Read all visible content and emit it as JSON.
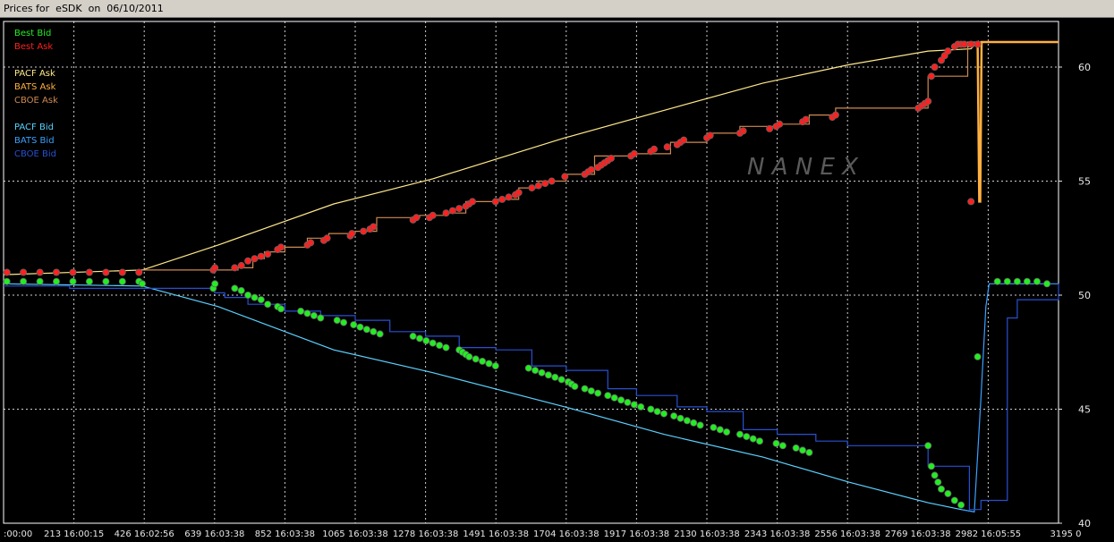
{
  "window": {
    "title": "Prices for  eSDK  on  06/10/2011"
  },
  "watermark": "N A N E X",
  "colors": {
    "background": "#000000",
    "plot_border": "#ffffff",
    "grid": "#cfcfcf",
    "axis_text": "#e6e6e6",
    "best_bid": "#22ee22",
    "best_ask": "#ff2020",
    "pacf_ask": "#ffe98a",
    "bats_ask": "#ffb040",
    "cboe_ask": "#d08a50",
    "pacf_bid": "#5ad2ff",
    "bats_bid": "#3aa0ff",
    "cboe_bid": "#2850d0"
  },
  "chart_data": {
    "type": "line",
    "title": "Prices for  eSDK  on  06/10/2011",
    "xlabel": "",
    "ylabel": "",
    "xlim": [
      0,
      3195
    ],
    "ylim": [
      40,
      62
    ],
    "grid": true,
    "legend_position": "top-left",
    "y_ticks": [
      40,
      45,
      50,
      55,
      60
    ],
    "x_tick_labels": [
      {
        "value": 0,
        "label": ":00:00"
      },
      {
        "value": 213,
        "label": "213 16:00:15"
      },
      {
        "value": 426,
        "label": "426 16:02:56"
      },
      {
        "value": 639,
        "label": "639 16:03:38"
      },
      {
        "value": 852,
        "label": "852 16:03:38"
      },
      {
        "value": 1065,
        "label": "1065 16:03:38"
      },
      {
        "value": 1278,
        "label": "1278 16:03:38"
      },
      {
        "value": 1491,
        "label": "1491 16:03:38"
      },
      {
        "value": 1704,
        "label": "1704 16:03:38"
      },
      {
        "value": 1917,
        "label": "1917 16:03:38"
      },
      {
        "value": 2130,
        "label": "2130 16:03:38"
      },
      {
        "value": 2343,
        "label": "2343 16:03:38"
      },
      {
        "value": 2556,
        "label": "2556 16:03:38"
      },
      {
        "value": 2769,
        "label": "2769 16:03:38"
      },
      {
        "value": 2982,
        "label": "2982 16:05:55"
      },
      {
        "value": 3195,
        "label": "3195 0"
      }
    ],
    "legend_groups": [
      [
        "Best Bid",
        "Best Ask"
      ],
      [
        "PACF Ask",
        "BATS Ask",
        "CBOE Ask"
      ],
      [
        "PACF Bid",
        "BATS Bid",
        "CBOE Bid"
      ]
    ],
    "series": [
      {
        "name": "PACF Ask",
        "kind": "line",
        "x": [
          0,
          420,
          650,
          1000,
          1300,
          1700,
          2000,
          2300,
          2560,
          2800,
          2930,
          2950,
          3195
        ],
        "y": [
          50.9,
          51.1,
          52.2,
          54.0,
          55.1,
          56.9,
          58.1,
          59.3,
          60.1,
          60.7,
          60.8,
          61.1,
          61.1
        ]
      },
      {
        "name": "BATS Ask",
        "kind": "line",
        "x": [
          2920,
          2950,
          2955,
          2958,
          2962,
          2975,
          3195
        ],
        "y": [
          60.9,
          61.1,
          54.1,
          54.1,
          61.1,
          61.1,
          61.1
        ]
      },
      {
        "name": "CBOE Ask",
        "kind": "step",
        "x": [
          420,
          639,
          710,
          755,
          790,
          852,
          920,
          985,
          1065,
          1130,
          1260,
          1340,
          1400,
          1491,
          1560,
          1620,
          1704,
          1790,
          1917,
          2020,
          2130,
          2230,
          2343,
          2440,
          2520,
          2760,
          2800,
          2920,
          2950
        ],
        "y": [
          51.1,
          51.1,
          51.2,
          51.6,
          51.9,
          52.1,
          52.5,
          52.7,
          52.8,
          53.4,
          53.5,
          53.6,
          54.1,
          54.2,
          54.7,
          55.0,
          55.3,
          56.1,
          56.2,
          56.7,
          57.1,
          57.4,
          57.5,
          57.9,
          58.2,
          58.2,
          59.6,
          61.1,
          61.1
        ]
      },
      {
        "name": "PACF Bid",
        "kind": "line",
        "x": [
          0,
          420,
          650,
          1000,
          1300,
          1700,
          2000,
          2300,
          2560,
          2800,
          2900,
          2940
        ],
        "y": [
          50.5,
          50.4,
          49.5,
          47.6,
          46.6,
          45.1,
          43.9,
          42.9,
          41.8,
          40.9,
          40.6,
          40.5
        ]
      },
      {
        "name": "BATS Bid",
        "kind": "line",
        "x": [
          2900,
          2940,
          2960,
          2975,
          2985,
          3020,
          3060,
          3195
        ],
        "y": [
          40.6,
          40.5,
          45.5,
          49.5,
          50.5,
          50.5,
          50.5,
          50.5
        ]
      },
      {
        "name": "CBOE Bid",
        "kind": "step",
        "x": [
          0,
          200,
          420,
          639,
          670,
          740,
          852,
          960,
          1065,
          1170,
          1278,
          1380,
          1491,
          1600,
          1704,
          1830,
          1917,
          2040,
          2130,
          2240,
          2343,
          2460,
          2556,
          2780,
          2800,
          2925,
          2960,
          3040,
          3070,
          3195
        ],
        "y": [
          50.4,
          50.3,
          50.3,
          50.1,
          49.9,
          49.6,
          49.3,
          49.1,
          48.9,
          48.4,
          48.2,
          47.7,
          47.6,
          46.9,
          46.7,
          45.9,
          45.6,
          45.1,
          44.9,
          44.1,
          43.9,
          43.6,
          43.4,
          43.4,
          42.5,
          40.6,
          41.0,
          49.0,
          49.8,
          50.5
        ]
      },
      {
        "name": "Best Ask",
        "kind": "markers",
        "x": [
          10,
          60,
          110,
          160,
          210,
          260,
          310,
          360,
          410,
          635,
          640,
          700,
          720,
          740,
          760,
          780,
          800,
          830,
          840,
          920,
          930,
          970,
          980,
          1050,
          1055,
          1090,
          1110,
          1120,
          1240,
          1250,
          1290,
          1300,
          1340,
          1360,
          1380,
          1400,
          1410,
          1420,
          1490,
          1510,
          1530,
          1550,
          1560,
          1600,
          1620,
          1640,
          1660,
          1700,
          1760,
          1770,
          1780,
          1800,
          1810,
          1820,
          1830,
          1840,
          1900,
          1910,
          1960,
          1970,
          2010,
          2040,
          2050,
          2060,
          2130,
          2140,
          2230,
          2240,
          2320,
          2340,
          2350,
          2420,
          2430,
          2510,
          2520,
          2770,
          2780,
          2790,
          2800,
          2810,
          2820,
          2840,
          2850,
          2860,
          2880,
          2890,
          2900,
          2910,
          2930,
          2950
        ],
        "y": [
          51.0,
          51.0,
          51.0,
          51.0,
          51.0,
          51.0,
          51.0,
          51.0,
          51.0,
          51.1,
          51.2,
          51.2,
          51.3,
          51.5,
          51.6,
          51.7,
          51.8,
          52.0,
          52.1,
          52.2,
          52.3,
          52.4,
          52.5,
          52.6,
          52.7,
          52.8,
          52.9,
          53.0,
          53.3,
          53.4,
          53.4,
          53.5,
          53.6,
          53.7,
          53.8,
          53.9,
          54.0,
          54.1,
          54.1,
          54.2,
          54.3,
          54.4,
          54.5,
          54.7,
          54.8,
          54.9,
          55.0,
          55.2,
          55.3,
          55.4,
          55.5,
          55.6,
          55.7,
          55.8,
          55.9,
          56.0,
          56.1,
          56.2,
          56.3,
          56.4,
          56.5,
          56.6,
          56.7,
          56.8,
          56.9,
          57.0,
          57.1,
          57.2,
          57.3,
          57.4,
          57.5,
          57.6,
          57.7,
          57.8,
          57.9,
          58.2,
          58.3,
          58.4,
          58.5,
          59.6,
          60.0,
          60.3,
          60.5,
          60.7,
          60.9,
          61.0,
          61.0,
          61.0,
          61.0,
          61.0
        ],
        "extra_points": [
          [
            2930,
            54.1
          ]
        ]
      },
      {
        "name": "Best Bid",
        "kind": "markers",
        "x": [
          10,
          60,
          110,
          160,
          210,
          260,
          310,
          360,
          410,
          420,
          635,
          640,
          700,
          720,
          740,
          760,
          780,
          800,
          830,
          840,
          900,
          920,
          940,
          960,
          1010,
          1030,
          1060,
          1080,
          1100,
          1120,
          1140,
          1240,
          1260,
          1280,
          1300,
          1320,
          1340,
          1380,
          1390,
          1400,
          1410,
          1430,
          1450,
          1470,
          1490,
          1590,
          1610,
          1630,
          1650,
          1670,
          1690,
          1710,
          1720,
          1730,
          1760,
          1780,
          1800,
          1830,
          1850,
          1870,
          1890,
          1910,
          1930,
          1960,
          1980,
          2000,
          2030,
          2050,
          2070,
          2090,
          2110,
          2150,
          2170,
          2190,
          2230,
          2250,
          2270,
          2290,
          2340,
          2360,
          2400,
          2420,
          2440,
          2800,
          2810,
          2820,
          2830,
          2840,
          2860,
          2880,
          2900,
          2950
        ],
        "y": [
          50.6,
          50.6,
          50.6,
          50.6,
          50.6,
          50.6,
          50.6,
          50.6,
          50.6,
          50.5,
          50.3,
          50.5,
          50.3,
          50.2,
          50.0,
          49.9,
          49.8,
          49.6,
          49.5,
          49.4,
          49.3,
          49.2,
          49.1,
          49.0,
          48.9,
          48.8,
          48.7,
          48.6,
          48.5,
          48.4,
          48.3,
          48.2,
          48.1,
          48.0,
          47.9,
          47.8,
          47.7,
          47.6,
          47.5,
          47.4,
          47.3,
          47.2,
          47.1,
          47.0,
          46.9,
          46.8,
          46.7,
          46.6,
          46.5,
          46.4,
          46.3,
          46.2,
          46.1,
          46.0,
          45.9,
          45.8,
          45.7,
          45.6,
          45.5,
          45.4,
          45.3,
          45.2,
          45.1,
          45.0,
          44.9,
          44.8,
          44.7,
          44.6,
          44.5,
          44.4,
          44.3,
          44.2,
          44.1,
          44.0,
          43.9,
          43.8,
          43.7,
          43.6,
          43.5,
          43.4,
          43.3,
          43.2,
          43.1,
          43.4,
          42.5,
          42.1,
          41.8,
          41.5,
          41.3,
          41.0,
          40.8,
          47.3
        ],
        "extra_points": [
          [
            3010,
            50.6
          ],
          [
            3040,
            50.6
          ],
          [
            3070,
            50.6
          ],
          [
            3100,
            50.6
          ],
          [
            3130,
            50.6
          ],
          [
            3160,
            50.5
          ]
        ]
      }
    ]
  }
}
